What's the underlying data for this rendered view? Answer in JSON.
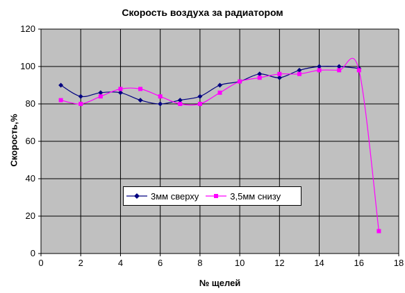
{
  "chart_data": {
    "type": "line",
    "title": "Скорость воздуха за радиатором",
    "xlabel": "№ щелей",
    "ylabel": "Скорость,%",
    "xlim": [
      0,
      18
    ],
    "ylim": [
      0,
      120
    ],
    "x_ticks": [
      0,
      2,
      4,
      6,
      8,
      10,
      12,
      14,
      16,
      18
    ],
    "y_ticks": [
      0,
      20,
      40,
      60,
      80,
      100,
      120
    ],
    "grid": true,
    "plot_background": "#c0c0c0",
    "legend_position": "center-lower",
    "series": [
      {
        "name": "3мм сверху",
        "color": "#000080",
        "marker": "diamond",
        "x": [
          1,
          2,
          3,
          4,
          5,
          6,
          7,
          8,
          9,
          10,
          11,
          12,
          13,
          14,
          15,
          16
        ],
        "y": [
          90,
          84,
          86,
          86,
          82,
          80,
          82,
          84,
          90,
          92,
          96,
          94,
          98,
          100,
          100,
          99
        ]
      },
      {
        "name": "3,5мм снизу",
        "color": "#ff00ff",
        "marker": "square",
        "x": [
          1,
          2,
          3,
          4,
          5,
          6,
          7,
          8,
          9,
          10,
          11,
          12,
          13,
          14,
          15,
          16,
          17
        ],
        "y": [
          82,
          80,
          84,
          88,
          88,
          84,
          80,
          80,
          86,
          92,
          94,
          96,
          96,
          98,
          98,
          98,
          12
        ]
      }
    ]
  }
}
